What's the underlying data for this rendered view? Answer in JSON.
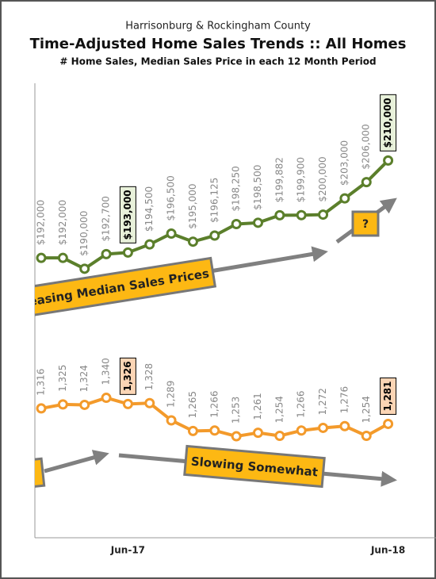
{
  "chart_data": {
    "type": "line",
    "supertitle": "Harrisonburg & Rockingham County",
    "title": "Time-Adjusted Home Sales Trends  ::  All Homes",
    "subtitle": "# Home Sales, Median Sales Price in each 12 Month Period",
    "categories": [
      null,
      null,
      null,
      null,
      "Jun-17",
      null,
      null,
      null,
      null,
      null,
      null,
      null,
      null,
      null,
      null,
      null,
      "Jun-18"
    ],
    "series": [
      {
        "name": "Median Sales Price",
        "color": "#5b7f2b",
        "axis": "y",
        "values": [
          192000,
          192000,
          190000,
          192700,
          193000,
          194500,
          196500,
          195000,
          196125,
          198250,
          198500,
          199882,
          199900,
          200000,
          203000,
          206000,
          210000
        ],
        "value_labels": [
          "$192,000",
          "$192,000",
          "$190,000",
          "$192,700",
          "$193,000",
          "$194,500",
          "$196,500",
          "$195,000",
          "$196,125",
          "$198,250",
          "$198,500",
          "$199,882",
          "$199,900",
          "$200,000",
          "$203,000",
          "$206,000",
          "$210,000"
        ]
      },
      {
        "name": "# Home Sales",
        "color": "#f39a2b",
        "axis": "y2",
        "values": [
          1316,
          1325,
          1324,
          1340,
          1326,
          1328,
          1289,
          1265,
          1266,
          1253,
          1261,
          1254,
          1266,
          1272,
          1276,
          1254,
          1281
        ],
        "value_labels": [
          "1,316",
          "1,325",
          "1,324",
          "1,340",
          "1,326",
          "1,328",
          "1,289",
          "1,265",
          "1,266",
          "1,253",
          "1,261",
          "1,254",
          "1,266",
          "1,272",
          "1,276",
          "1,254",
          "1,281"
        ]
      }
    ],
    "highlight": [
      4,
      16
    ],
    "ylim": [
      140000,
      225000
    ],
    "y2lim": [
      1020,
      2060
    ],
    "annotations": [
      "easing Median Sales Prices",
      "?",
      "Slowing Somewhat"
    ]
  }
}
